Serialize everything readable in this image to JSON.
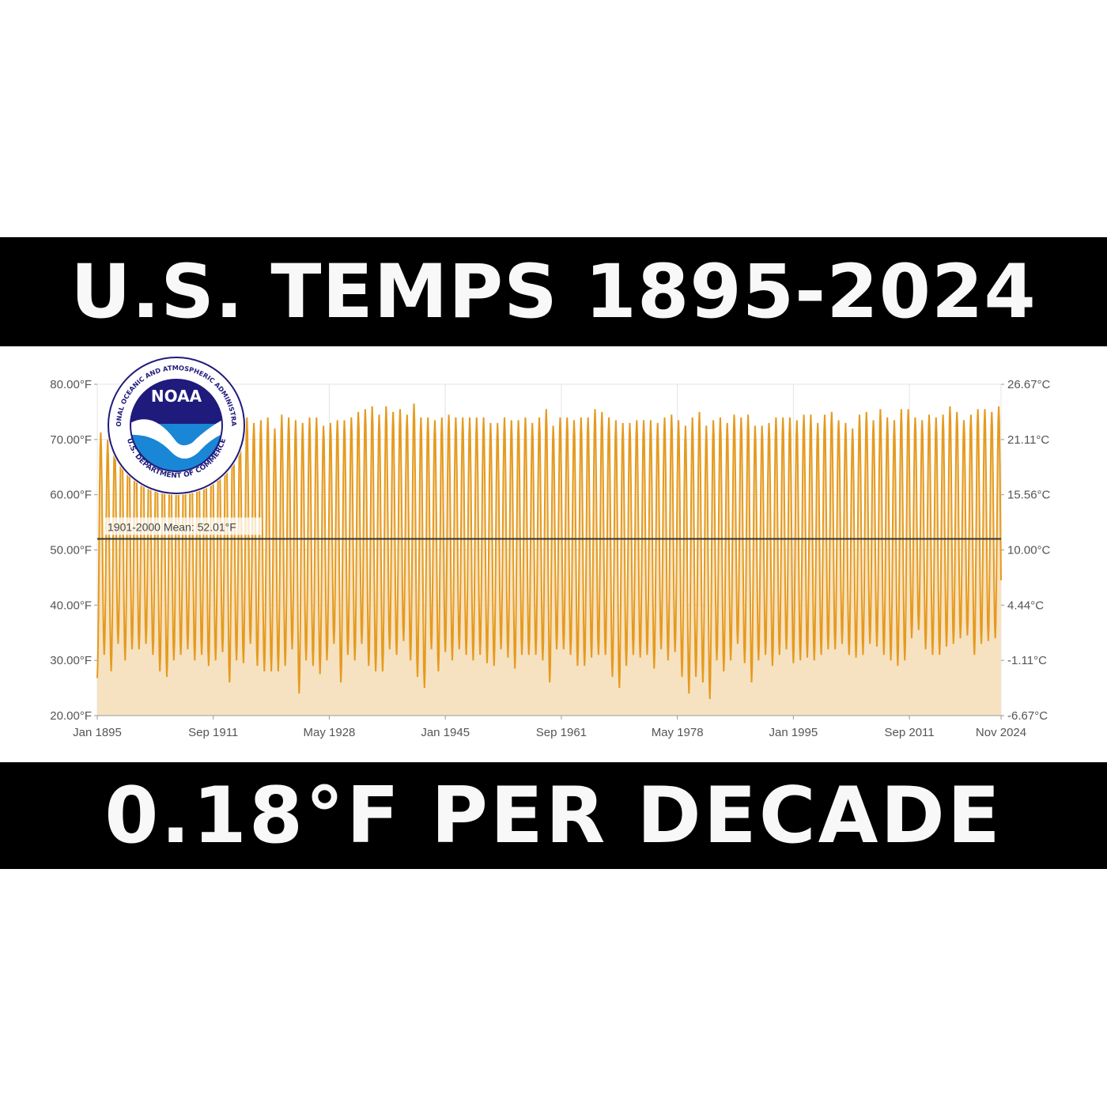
{
  "headline": "U.S. TEMPS 1895-2024",
  "subhead": "0.18°F PER DECADE",
  "logo": {
    "name": "NOAA",
    "ring_text_top": "NATIONAL OCEANIC AND ATMOSPHERIC ADMINISTRATION",
    "ring_text_bottom": "U.S. DEPARTMENT OF COMMERCE"
  },
  "colors": {
    "line": "#e59a1e",
    "fill": "#f6e2c1",
    "mean_line": "#333333",
    "banner": "#000000",
    "banner_text": "#f8f8f8",
    "logo_navy": "#1f1b7c",
    "logo_blue": "#1a86d6"
  },
  "chart_data": {
    "type": "area",
    "title": "",
    "xlabel": "",
    "ylabel": "",
    "x_range": [
      "Jan 1895",
      "Nov 2024"
    ],
    "x_ticks": [
      "Jan 1895",
      "Sep 1911",
      "May 1928",
      "Jan 1945",
      "Sep 1961",
      "May 1978",
      "Jan 1995",
      "Sep 2011",
      "Nov 2024"
    ],
    "y_ticks_left": [
      "80.00°F",
      "70.00°F",
      "60.00°F",
      "50.00°F",
      "40.00°F",
      "30.00°F",
      "20.00°F"
    ],
    "y_ticks_right": [
      "26.67°C",
      "21.11°C",
      "15.56°C",
      "10.00°C",
      "4.44°C",
      "-1.11°C",
      "-6.67°C"
    ],
    "ylim": [
      20,
      80
    ],
    "grid": true,
    "mean_line": {
      "value": 52.01,
      "label": "1901-2000 Mean: 52.01°F"
    },
    "series": [
      {
        "start_year": 1895,
        "annual_max": [
          71.3,
          70.0,
          70.0,
          74.0,
          72.0,
          74.0,
          75.5,
          72.0,
          71.0,
          72.0,
          72.0,
          73.0,
          72.0,
          72.5,
          73.0,
          73.0,
          73.5,
          72.0,
          73.5,
          74.0,
          71.5,
          74.0,
          73.0,
          73.5,
          74.0,
          72.0,
          74.5,
          74.0,
          73.5,
          73.0,
          74.0,
          74.0,
          72.5,
          73.0,
          73.5,
          73.5,
          74.0,
          75.0,
          75.5,
          76.0,
          74.5,
          76.0,
          75.0,
          75.5,
          74.5,
          76.5,
          74.0,
          74.0,
          73.5,
          74.0,
          74.5,
          74.0,
          74.0,
          74.0,
          74.0,
          74.0,
          73.0,
          73.0,
          74.0,
          73.5,
          73.5,
          74.0,
          73.0,
          74.0,
          75.5,
          72.5,
          74.0,
          74.0,
          73.5,
          74.0,
          74.0,
          75.5,
          75.0,
          74.0,
          73.5,
          73.0,
          73.0,
          73.5,
          73.5,
          73.5,
          73.0,
          74.0,
          74.5,
          73.5,
          72.5,
          74.0,
          75.0,
          72.5,
          73.5,
          74.0,
          73.0,
          74.5,
          74.0,
          74.5,
          72.5,
          72.5,
          73.0,
          74.0,
          74.0,
          74.0,
          73.5,
          74.5,
          74.5,
          73.0,
          74.5,
          75.0,
          73.5,
          73.0,
          72.0,
          74.5,
          75.0,
          73.5,
          75.5,
          74.0,
          73.5,
          75.5,
          75.5,
          74.0,
          73.5,
          74.5,
          74.0,
          74.5,
          76.0,
          75.0,
          73.5,
          74.5,
          75.5,
          75.5,
          75.0,
          76.0
        ],
        "annual_min": [
          26.8,
          31.0,
          28.0,
          33.0,
          30.0,
          32.0,
          32.0,
          33.0,
          31.0,
          28.0,
          27.0,
          30.0,
          31.0,
          32.0,
          30.0,
          31.0,
          29.0,
          30.0,
          31.5,
          26.0,
          30.0,
          29.5,
          33.0,
          29.0,
          28.0,
          28.0,
          28.0,
          29.0,
          32.0,
          24.0,
          30.0,
          29.0,
          27.5,
          30.0,
          33.0,
          26.0,
          31.0,
          30.0,
          33.0,
          29.0,
          28.0,
          28.0,
          32.0,
          31.0,
          33.5,
          30.0,
          27.0,
          25.0,
          32.0,
          28.0,
          31.5,
          30.0,
          32.0,
          31.0,
          30.0,
          31.0,
          29.5,
          29.0,
          32.0,
          30.5,
          28.5,
          31.0,
          31.0,
          31.0,
          30.0,
          26.0,
          32.0,
          32.0,
          31.0,
          29.0,
          29.0,
          30.5,
          31.0,
          31.0,
          27.0,
          25.0,
          29.0,
          31.0,
          30.5,
          31.0,
          28.5,
          32.0,
          30.0,
          31.5,
          27.0,
          24.0,
          27.0,
          26.0,
          23.0,
          30.0,
          28.0,
          30.0,
          33.0,
          29.5,
          26.0,
          30.0,
          31.0,
          29.0,
          31.0,
          32.0,
          29.5,
          30.0,
          30.5,
          30.0,
          31.0,
          32.0,
          32.0,
          33.0,
          31.0,
          30.5,
          31.0,
          33.0,
          32.5,
          31.0,
          30.0,
          29.0,
          30.0,
          34.0,
          35.5,
          32.0,
          31.0,
          31.0,
          32.5,
          33.0,
          34.0,
          34.5,
          31.0,
          33.0,
          33.5,
          34.0
        ]
      }
    ]
  }
}
